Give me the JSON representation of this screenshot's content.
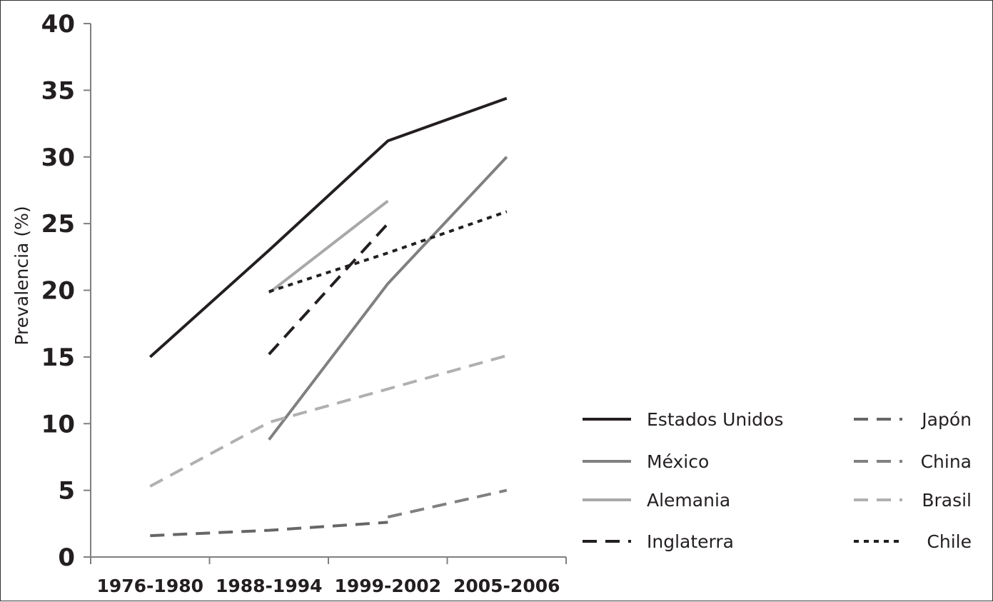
{
  "chart_data": {
    "type": "line",
    "title": "",
    "xlabel": "",
    "ylabel": "Prevalencia (%)",
    "categories": [
      "1976-1980",
      "1988-1994",
      "1999-2002",
      "2005-2006"
    ],
    "yticks": [
      "0",
      "5",
      "10",
      "15",
      "20",
      "25",
      "30",
      "35",
      "40"
    ],
    "ylim": [
      0,
      40
    ],
    "grid": false,
    "legend_position": "bottom-right",
    "series": [
      {
        "name": "Estados Unidos",
        "values": [
          15.0,
          23.0,
          31.2,
          34.4
        ],
        "color": "#231f20",
        "dash": "solid"
      },
      {
        "name": "México",
        "values": [
          null,
          8.8,
          20.5,
          30.0
        ],
        "color": "#808080",
        "dash": "solid"
      },
      {
        "name": "Alemania",
        "values": [
          null,
          19.8,
          26.7,
          null
        ],
        "color": "#a8a8a8",
        "dash": "solid"
      },
      {
        "name": "Inglaterra",
        "values": [
          null,
          15.2,
          25.0,
          null
        ],
        "color": "#231f20",
        "dash": "dashed"
      },
      {
        "name": "Japón",
        "values": [
          1.6,
          2.0,
          2.6,
          null
        ],
        "color": "#666666",
        "dash": "dashed"
      },
      {
        "name": "China",
        "values": [
          null,
          null,
          3.0,
          5.0
        ],
        "color": "#808080",
        "dash": "dashed"
      },
      {
        "name": "Brasil",
        "values": [
          5.3,
          10.1,
          12.6,
          15.1
        ],
        "color": "#b0b0b0",
        "dash": "dashed"
      },
      {
        "name": "Chile",
        "values": [
          null,
          19.9,
          22.8,
          25.9
        ],
        "color": "#231f20",
        "dash": "dotted"
      }
    ]
  }
}
